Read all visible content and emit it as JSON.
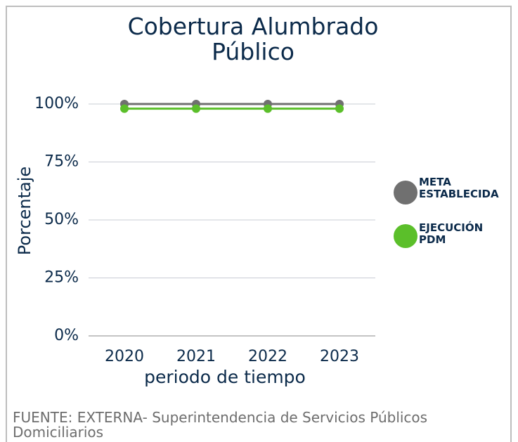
{
  "chart_data": {
    "type": "line",
    "title": "Cobertura Alumbrado Público",
    "x_label": "periodo de tiempo",
    "y_label": "Porcentaje",
    "categories": [
      "2020",
      "2021",
      "2022",
      "2023"
    ],
    "series": [
      {
        "name": "META ESTABLECIDA",
        "color": "#707070",
        "values": [
          100,
          100,
          100,
          100
        ]
      },
      {
        "name": "EJECUCIÓN PDM",
        "color": "#5bbf2a",
        "values": [
          98,
          98,
          98,
          98
        ]
      }
    ],
    "ylim": [
      0,
      100
    ],
    "yticks": [
      {
        "value": 0,
        "label": "0%"
      },
      {
        "value": 25,
        "label": "25%"
      },
      {
        "value": 50,
        "label": "50%"
      },
      {
        "value": 75,
        "label": "75%"
      },
      {
        "value": 100,
        "label": "100%"
      }
    ],
    "grid": true,
    "legend": "right",
    "source": "FUENTE: EXTERNA- Superintendencia de Servicios Públicos Domiciliarios"
  }
}
